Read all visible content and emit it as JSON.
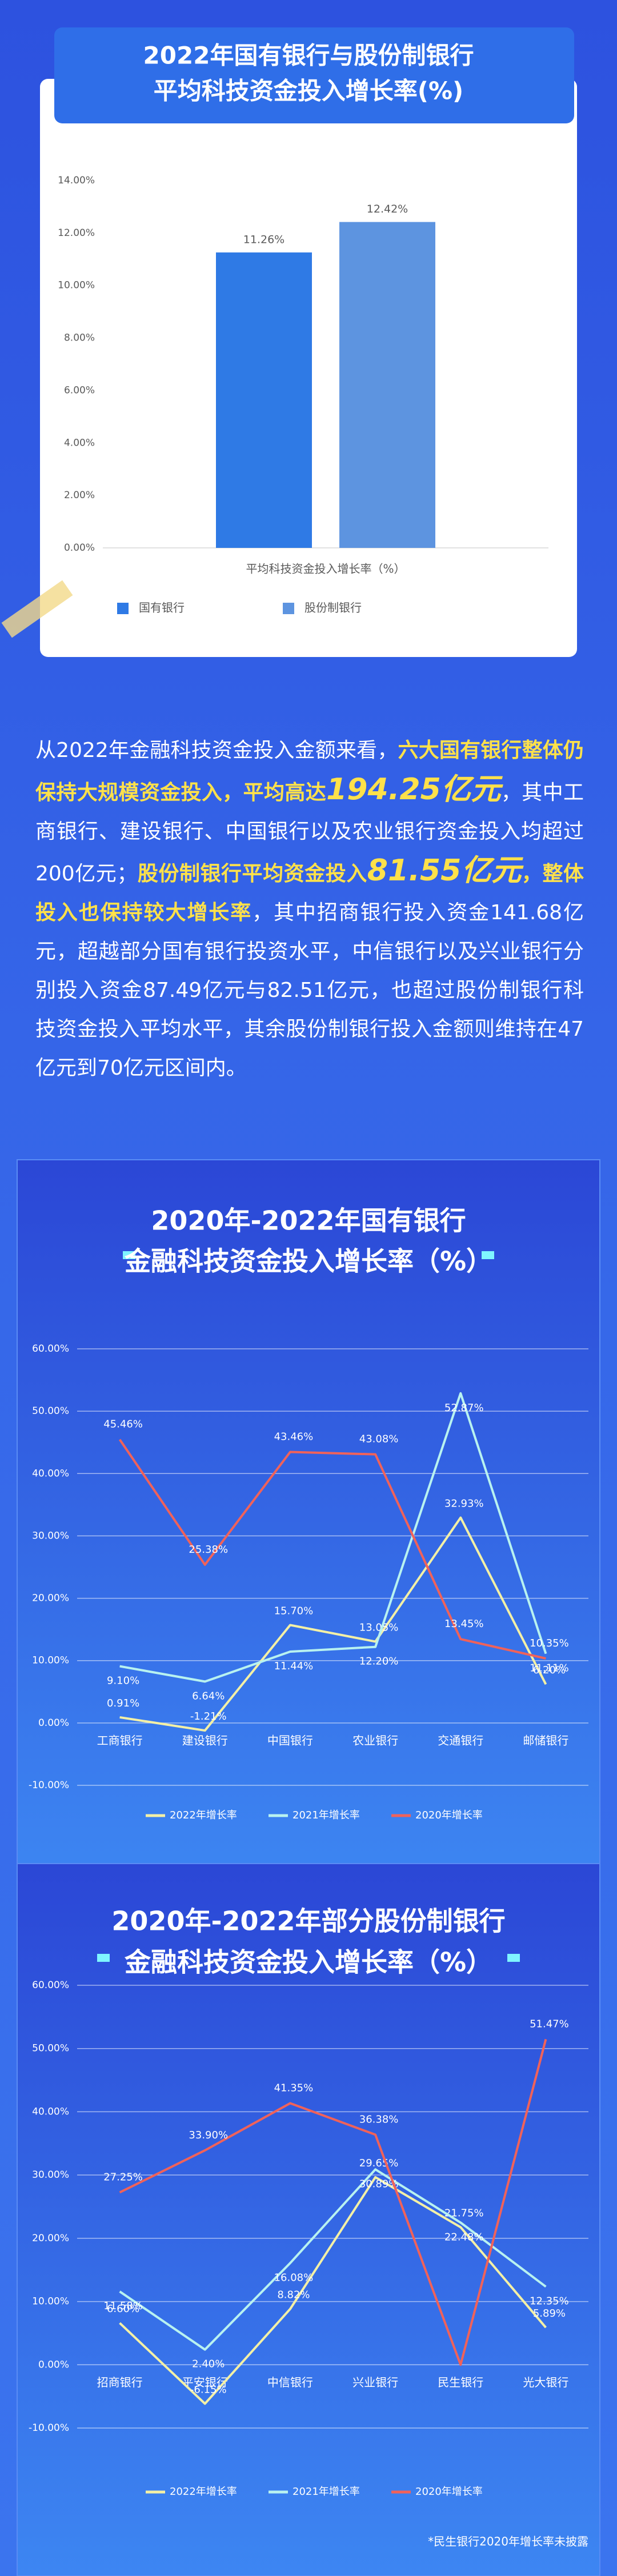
{
  "chart_data": [
    {
      "type": "bar",
      "title": [
        "2022年国有银行与股份制银行",
        "平均科技资金投入增长率(%)"
      ],
      "categories": [
        "平均科技资金投入增长率（%）"
      ],
      "series": [
        {
          "name": "国有银行",
          "color": "#2f7ae5",
          "values": [
            11.26
          ],
          "value_labels": [
            "11.26%"
          ]
        },
        {
          "name": "股份制银行",
          "color": "#5d94e0",
          "values": [
            12.42
          ],
          "value_labels": [
            "12.42%"
          ]
        }
      ],
      "ylim": [
        0,
        14
      ],
      "yticks": [
        {
          "value": 0,
          "label": "0.00%"
        },
        {
          "value": 2,
          "label": "2.00%"
        },
        {
          "value": 4,
          "label": "4.00%"
        },
        {
          "value": 6,
          "label": "6.00%"
        },
        {
          "value": 8,
          "label": "8.00%"
        },
        {
          "value": 10,
          "label": "10.00%"
        },
        {
          "value": 12,
          "label": "12.00%"
        },
        {
          "value": 14,
          "label": "14.00%"
        }
      ],
      "grid": false,
      "legend": "bottom"
    },
    {
      "type": "line",
      "title": [
        "2020年-2022年国有银行",
        "金融科技资金投入增长率（%）"
      ],
      "categories": [
        "工商银行",
        "建设银行",
        "中国银行",
        "农业银行",
        "交通银行",
        "邮储银行"
      ],
      "series": [
        {
          "name": "2022年增长率",
          "color": "#f3f0a6",
          "values": [
            0.91,
            -1.21,
            15.7,
            13.05,
            32.93,
            6.2
          ],
          "value_labels": [
            "0.91%",
            "-1.21%",
            "15.70%",
            "13.05%",
            "32.93%",
            "6.20%"
          ]
        },
        {
          "name": "2021年增长率",
          "color": "#b8f2f0",
          "values": [
            9.1,
            6.64,
            11.44,
            12.2,
            52.87,
            11.11
          ],
          "value_labels": [
            "9.10%",
            "6.64%",
            "11.44%",
            "12.20%",
            "52.87%",
            "11.11%"
          ]
        },
        {
          "name": "2020年增长率",
          "color": "#f0625a",
          "values": [
            45.46,
            25.38,
            43.46,
            43.08,
            13.45,
            10.35
          ],
          "value_labels": [
            "45.46%",
            "25.38%",
            "43.46%",
            "43.08%",
            "13.45%",
            "10.35%"
          ]
        }
      ],
      "ylim": [
        -10,
        60
      ],
      "yticks": [
        {
          "value": -10,
          "label": "-10.00%"
        },
        {
          "value": 0,
          "label": "0.00%"
        },
        {
          "value": 10,
          "label": "10.00%"
        },
        {
          "value": 20,
          "label": "20.00%"
        },
        {
          "value": 30,
          "label": "30.00%"
        },
        {
          "value": 40,
          "label": "40.00%"
        },
        {
          "value": 50,
          "label": "50.00%"
        },
        {
          "value": 60,
          "label": "60.00%"
        }
      ],
      "grid": true,
      "legend": "bottom"
    },
    {
      "type": "line",
      "title": [
        "2020年-2022年部分股份制银行",
        "金融科技资金投入增长率（%）"
      ],
      "categories": [
        "招商银行",
        "平安银行",
        "中信银行",
        "兴业银行",
        "民生银行",
        "光大银行"
      ],
      "series": [
        {
          "name": "2022年增长率",
          "color": "#f3f0a6",
          "values": [
            6.6,
            -6.15,
            8.82,
            29.65,
            21.75,
            5.89
          ],
          "value_labels": [
            "6.60%",
            "-6.15%",
            "8.82%",
            "29.65%",
            "21.75%",
            "5.89%"
          ]
        },
        {
          "name": "2021年增长率",
          "color": "#b8f2f0",
          "values": [
            11.58,
            2.4,
            16.08,
            30.89,
            22.48,
            12.35
          ],
          "value_labels": [
            "11.58%",
            "2.40%",
            "16.08%",
            "30.89%",
            "22.48%",
            "12.35%"
          ]
        },
        {
          "name": "2020年增长率",
          "color": "#f0625a",
          "values": [
            27.25,
            33.9,
            41.35,
            36.38,
            0,
            51.47
          ],
          "value_labels": [
            "27.25%",
            "33.90%",
            "41.35%",
            "36.38%",
            null,
            "51.47%"
          ]
        }
      ],
      "ylim": [
        -10,
        60
      ],
      "yticks": [
        {
          "value": -10,
          "label": "-10.00%"
        },
        {
          "value": 0,
          "label": "0.00%"
        },
        {
          "value": 10,
          "label": "10.00%"
        },
        {
          "value": 20,
          "label": "20.00%"
        },
        {
          "value": 30,
          "label": "30.00%"
        },
        {
          "value": 40,
          "label": "40.00%"
        },
        {
          "value": 50,
          "label": "50.00%"
        },
        {
          "value": 60,
          "label": "60.00%"
        }
      ],
      "grid": true,
      "legend": "bottom",
      "footnote": "*民生银行2020年增长率未披露"
    }
  ],
  "article": {
    "runs": [
      {
        "text": "从2022年金融科技资金投入金额来看，",
        "style": "normal"
      },
      {
        "text": "六大国有银行整体仍保持大规模资金投入，平均高达",
        "style": "highlight"
      },
      {
        "text": "194.25亿元",
        "style": "emphasis"
      },
      {
        "text": "，其中工商银行、建设银行、中国银行以及农业银行资金投入均超过200亿元；",
        "style": "normal"
      },
      {
        "text": "股份制银行平均资金投入",
        "style": "highlight"
      },
      {
        "text": "81.55亿元",
        "style": "emphasis"
      },
      {
        "text": "，整体投入也保持较大增长率",
        "style": "highlight"
      },
      {
        "text": "，其中招商银行投入资金141.68亿元，超越部分国有银行投资水平，中信银行以及兴业银行分别投入资金87.49亿元与82.51亿元，也超过股份制银行科技资金投入平均水平，其余股份制银行投入金额则维持在47亿元到70亿元区间内。",
        "style": "normal"
      }
    ]
  }
}
